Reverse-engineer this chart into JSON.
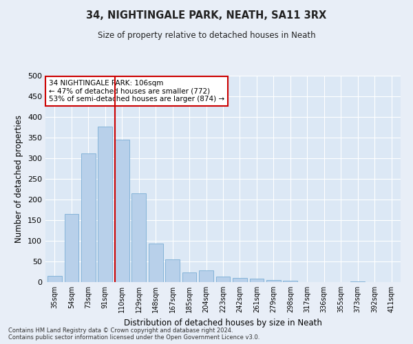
{
  "title": "34, NIGHTINGALE PARK, NEATH, SA11 3RX",
  "subtitle": "Size of property relative to detached houses in Neath",
  "xlabel": "Distribution of detached houses by size in Neath",
  "ylabel": "Number of detached properties",
  "categories": [
    "35sqm",
    "54sqm",
    "73sqm",
    "91sqm",
    "110sqm",
    "129sqm",
    "148sqm",
    "167sqm",
    "185sqm",
    "204sqm",
    "223sqm",
    "242sqm",
    "261sqm",
    "279sqm",
    "298sqm",
    "317sqm",
    "336sqm",
    "355sqm",
    "373sqm",
    "392sqm",
    "411sqm"
  ],
  "values": [
    15,
    165,
    312,
    377,
    345,
    215,
    93,
    55,
    24,
    29,
    14,
    10,
    9,
    5,
    3,
    0,
    0,
    0,
    1,
    0,
    0
  ],
  "bar_color": "#b8d0ea",
  "bar_edge_color": "#7aadd4",
  "vline_color": "#cc0000",
  "vline_pos": 3.57,
  "annotation_title": "34 NIGHTINGALE PARK: 106sqm",
  "annotation_line2": "← 47% of detached houses are smaller (772)",
  "annotation_line3": "53% of semi-detached houses are larger (874) →",
  "annotation_box_edgecolor": "#cc0000",
  "ylim": [
    0,
    500
  ],
  "yticks": [
    0,
    50,
    100,
    150,
    200,
    250,
    300,
    350,
    400,
    450,
    500
  ],
  "footnote1": "Contains HM Land Registry data © Crown copyright and database right 2024.",
  "footnote2": "Contains public sector information licensed under the Open Government Licence v3.0.",
  "fig_bg_color": "#e8eef7",
  "plot_bg_color": "#dce8f5",
  "figsize": [
    6.0,
    5.0
  ],
  "dpi": 100
}
